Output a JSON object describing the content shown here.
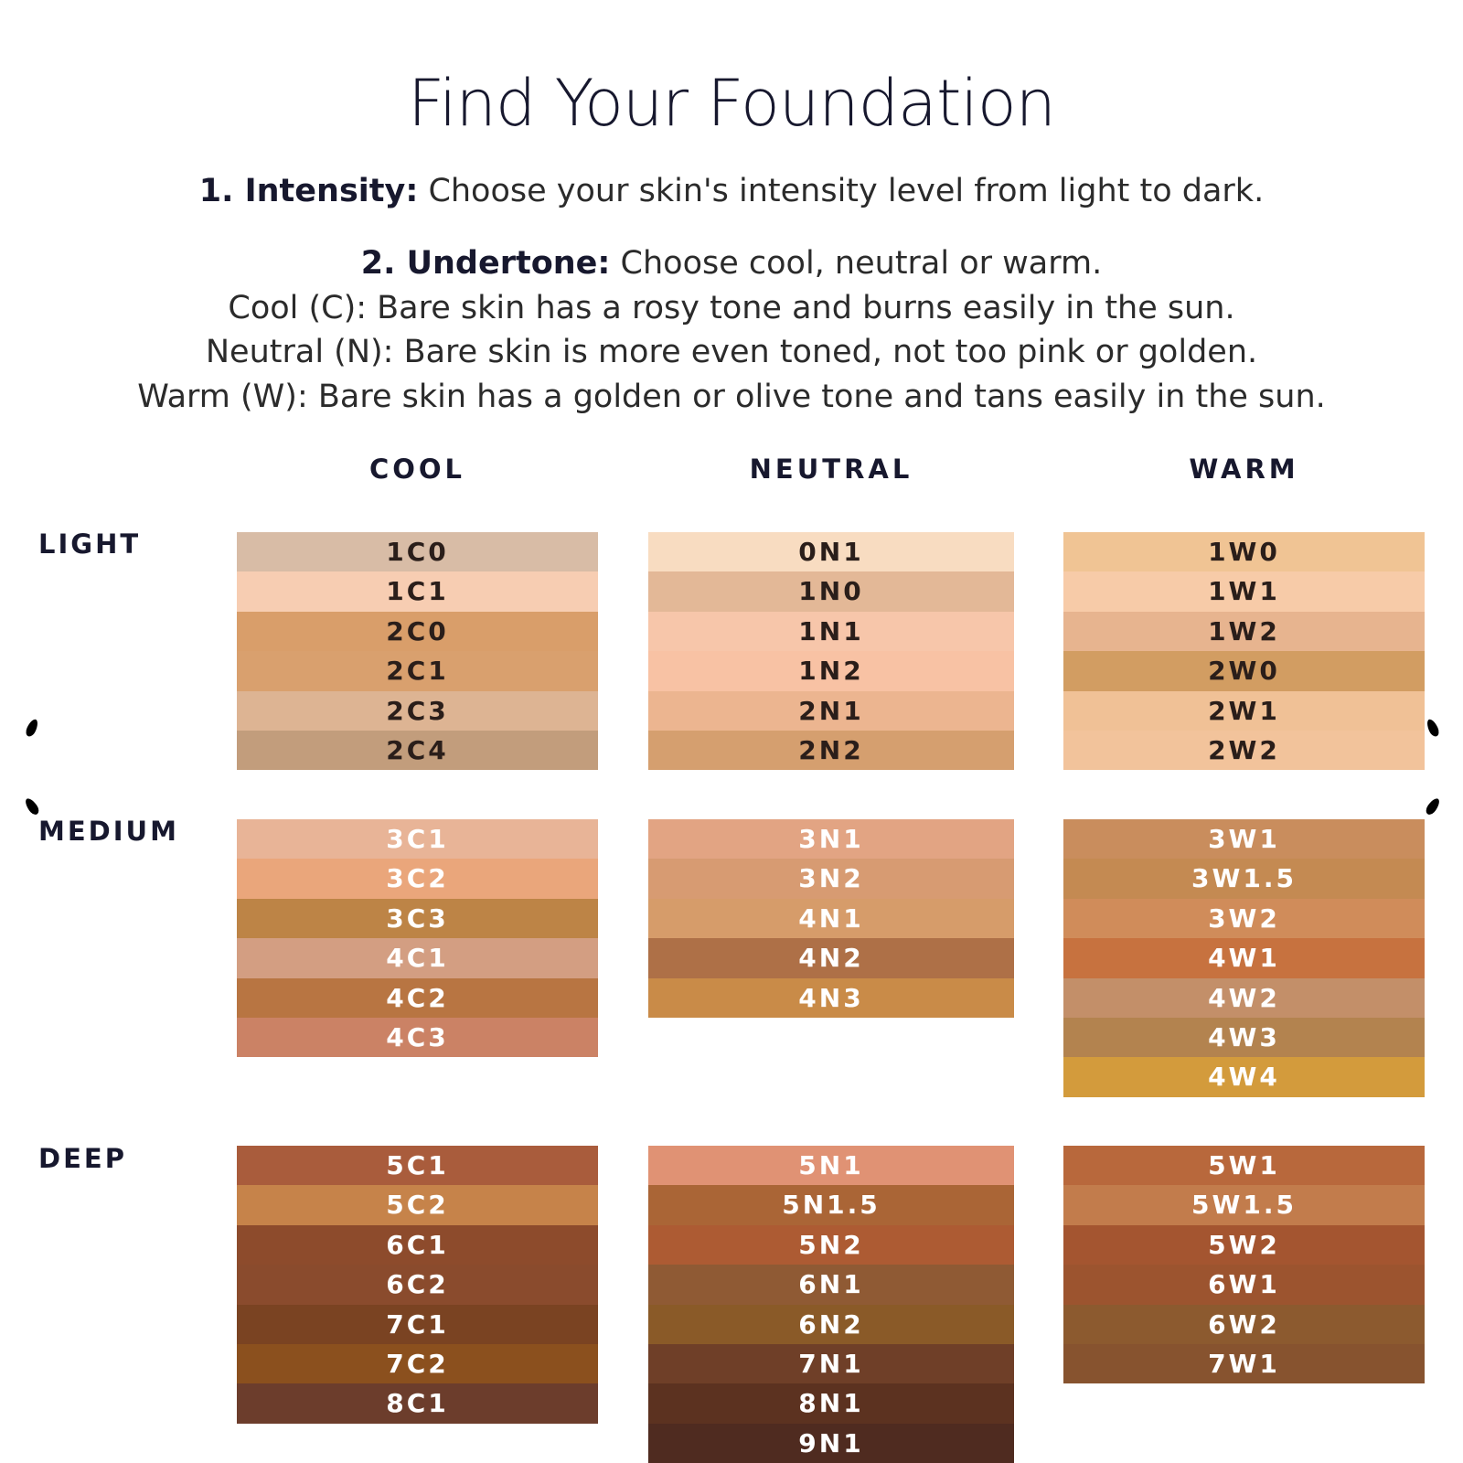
{
  "title": "Find Your Foundation",
  "step1": {
    "label": "1. Intensity:",
    "text": " Choose your skin's intensity level from light to dark."
  },
  "step2": {
    "label": "2. Undertone:",
    "text": " Choose cool, neutral or warm."
  },
  "undertones": {
    "cool": "Cool (C): Bare skin has a rosy tone and burns easily in the sun.",
    "neutral": "Neutral (N): Bare skin is more even toned, not too pink or golden.",
    "warm": "Warm (W): Bare skin has a golden or olive tone and tans easily in the sun."
  },
  "columns": {
    "cool": "COOL",
    "neutral": "NEUTRAL",
    "warm": "WARM"
  },
  "rows": {
    "light": "LIGHT",
    "medium": "MEDIUM",
    "deep": "DEEP"
  },
  "groups": {
    "light_cool": [
      {
        "code": "1C0",
        "color": "#d8bca6",
        "text": "#2a1e1a"
      },
      {
        "code": "1C1",
        "color": "#f7cdb2",
        "text": "#2a1e1a"
      },
      {
        "code": "2C0",
        "color": "#d99e6a",
        "text": "#2a1e1a"
      },
      {
        "code": "2C1",
        "color": "#d9a06e",
        "text": "#2a1e1a"
      },
      {
        "code": "2C3",
        "color": "#ddb493",
        "text": "#2a1e1a"
      },
      {
        "code": "2C4",
        "color": "#c29d7c",
        "text": "#2a1e1a"
      }
    ],
    "light_neutral": [
      {
        "code": "0N1",
        "color": "#f8dcc1",
        "text": "#2a1e1a"
      },
      {
        "code": "1N0",
        "color": "#e3b897",
        "text": "#2a1e1a"
      },
      {
        "code": "1N1",
        "color": "#f7c6aa",
        "text": "#2a1e1a"
      },
      {
        "code": "1N2",
        "color": "#f8c2a4",
        "text": "#2a1e1a"
      },
      {
        "code": "2N1",
        "color": "#ecb590",
        "text": "#2a1e1a"
      },
      {
        "code": "2N2",
        "color": "#d59f6f",
        "text": "#2a1e1a"
      }
    ],
    "light_warm": [
      {
        "code": "1W0",
        "color": "#f0c494",
        "text": "#2a1e1a"
      },
      {
        "code": "1W1",
        "color": "#f7cba8",
        "text": "#2a1e1a"
      },
      {
        "code": "1W2",
        "color": "#e7b48f",
        "text": "#2a1e1a"
      },
      {
        "code": "2W0",
        "color": "#d29d62",
        "text": "#2a1e1a"
      },
      {
        "code": "2W1",
        "color": "#f0c196",
        "text": "#2a1e1a"
      },
      {
        "code": "2W2",
        "color": "#f2c39b",
        "text": "#2a1e1a"
      }
    ],
    "medium_cool": [
      {
        "code": "3C1",
        "color": "#e8b497",
        "text": "#ffffff"
      },
      {
        "code": "3C2",
        "color": "#eaa67b",
        "text": "#ffffff"
      },
      {
        "code": "3C3",
        "color": "#bd8446",
        "text": "#ffffff"
      },
      {
        "code": "4C1",
        "color": "#d39e82",
        "text": "#ffffff"
      },
      {
        "code": "4C2",
        "color": "#b87542",
        "text": "#ffffff"
      },
      {
        "code": "4C3",
        "color": "#cb8265",
        "text": "#ffffff"
      }
    ],
    "medium_neutral": [
      {
        "code": "3N1",
        "color": "#e2a483",
        "text": "#ffffff"
      },
      {
        "code": "3N2",
        "color": "#d79b72",
        "text": "#ffffff"
      },
      {
        "code": "4N1",
        "color": "#d69c6a",
        "text": "#ffffff"
      },
      {
        "code": "4N2",
        "color": "#ae7047",
        "text": "#ffffff"
      },
      {
        "code": "4N3",
        "color": "#c98b48",
        "text": "#ffffff"
      }
    ],
    "medium_warm": [
      {
        "code": "3W1",
        "color": "#c98d5d",
        "text": "#ffffff"
      },
      {
        "code": "3W1.5",
        "color": "#c48a52",
        "text": "#ffffff"
      },
      {
        "code": "3W2",
        "color": "#d08c5a",
        "text": "#ffffff"
      },
      {
        "code": "4W1",
        "color": "#c7723f",
        "text": "#ffffff"
      },
      {
        "code": "4W2",
        "color": "#c38f69",
        "text": "#ffffff"
      },
      {
        "code": "4W3",
        "color": "#b3834f",
        "text": "#ffffff"
      },
      {
        "code": "4W4",
        "color": "#d39b3c",
        "text": "#ffffff"
      }
    ],
    "deep_cool": [
      {
        "code": "5C1",
        "color": "#a95c3c",
        "text": "#ffffff"
      },
      {
        "code": "5C2",
        "color": "#c6834a",
        "text": "#ffffff"
      },
      {
        "code": "6C1",
        "color": "#8d4b2c",
        "text": "#ffffff"
      },
      {
        "code": "6C2",
        "color": "#8a4b2d",
        "text": "#ffffff"
      },
      {
        "code": "7C1",
        "color": "#7a4322",
        "text": "#ffffff"
      },
      {
        "code": "7C2",
        "color": "#8b501e",
        "text": "#ffffff"
      },
      {
        "code": "8C1",
        "color": "#6c3d2c",
        "text": "#ffffff"
      }
    ],
    "deep_neutral": [
      {
        "code": "5N1",
        "color": "#e09274",
        "text": "#ffffff"
      },
      {
        "code": "5N1.5",
        "color": "#aa6536",
        "text": "#ffffff"
      },
      {
        "code": "5N2",
        "color": "#ad5b33",
        "text": "#ffffff"
      },
      {
        "code": "6N1",
        "color": "#8f5a34",
        "text": "#ffffff"
      },
      {
        "code": "6N2",
        "color": "#8a5a28",
        "text": "#ffffff"
      },
      {
        "code": "7N1",
        "color": "#6f3f28",
        "text": "#ffffff"
      },
      {
        "code": "8N1",
        "color": "#5c3220",
        "text": "#ffffff"
      },
      {
        "code": "9N1",
        "color": "#4f2b20",
        "text": "#ffffff"
      }
    ],
    "deep_warm": [
      {
        "code": "5W1",
        "color": "#b8683c",
        "text": "#ffffff"
      },
      {
        "code": "5W1.5",
        "color": "#c27c4c",
        "text": "#ffffff"
      },
      {
        "code": "5W2",
        "color": "#a45530",
        "text": "#ffffff"
      },
      {
        "code": "6W1",
        "color": "#9c542f",
        "text": "#ffffff"
      },
      {
        "code": "6W2",
        "color": "#8c5a2f",
        "text": "#ffffff"
      },
      {
        "code": "7W1",
        "color": "#87532f",
        "text": "#ffffff"
      }
    ]
  }
}
